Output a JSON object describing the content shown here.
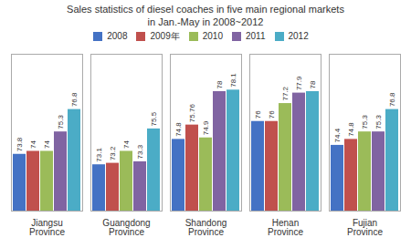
{
  "chart_data": {
    "type": "bar",
    "title": "Sales statistics of diesel coaches in five main regional markets",
    "subtitle": "in Jan.-May in 2008~2012",
    "categories": [
      "Jiangsu\nProvince",
      "Guangdong\nProvince",
      "Shandong\nProvince",
      "Henan\nProvince",
      "Fujian\nProvince"
    ],
    "series": [
      {
        "name": "2008",
        "color": "#4472C4",
        "values": [
          73.8,
          73.1,
          74.8,
          76.0,
          74.4
        ]
      },
      {
        "name": "2009年",
        "color": "#C0504D",
        "values": [
          74.0,
          73.2,
          75.76,
          76.0,
          74.8
        ]
      },
      {
        "name": "2010",
        "color": "#9BBB59",
        "values": [
          74.0,
          74.0,
          74.9,
          77.2,
          75.3
        ]
      },
      {
        "name": "2011",
        "color": "#8064A2",
        "values": [
          75.3,
          73.3,
          78.0,
          77.9,
          75.3
        ]
      },
      {
        "name": "2012",
        "color": "#4BACC6",
        "values": [
          76.8,
          75.5,
          78.1,
          78.0,
          76.8
        ]
      }
    ],
    "ylim": [
      70,
      80.5
    ],
    "data_labels": true,
    "tick_labels": "x",
    "grid": false,
    "legend": "top"
  }
}
